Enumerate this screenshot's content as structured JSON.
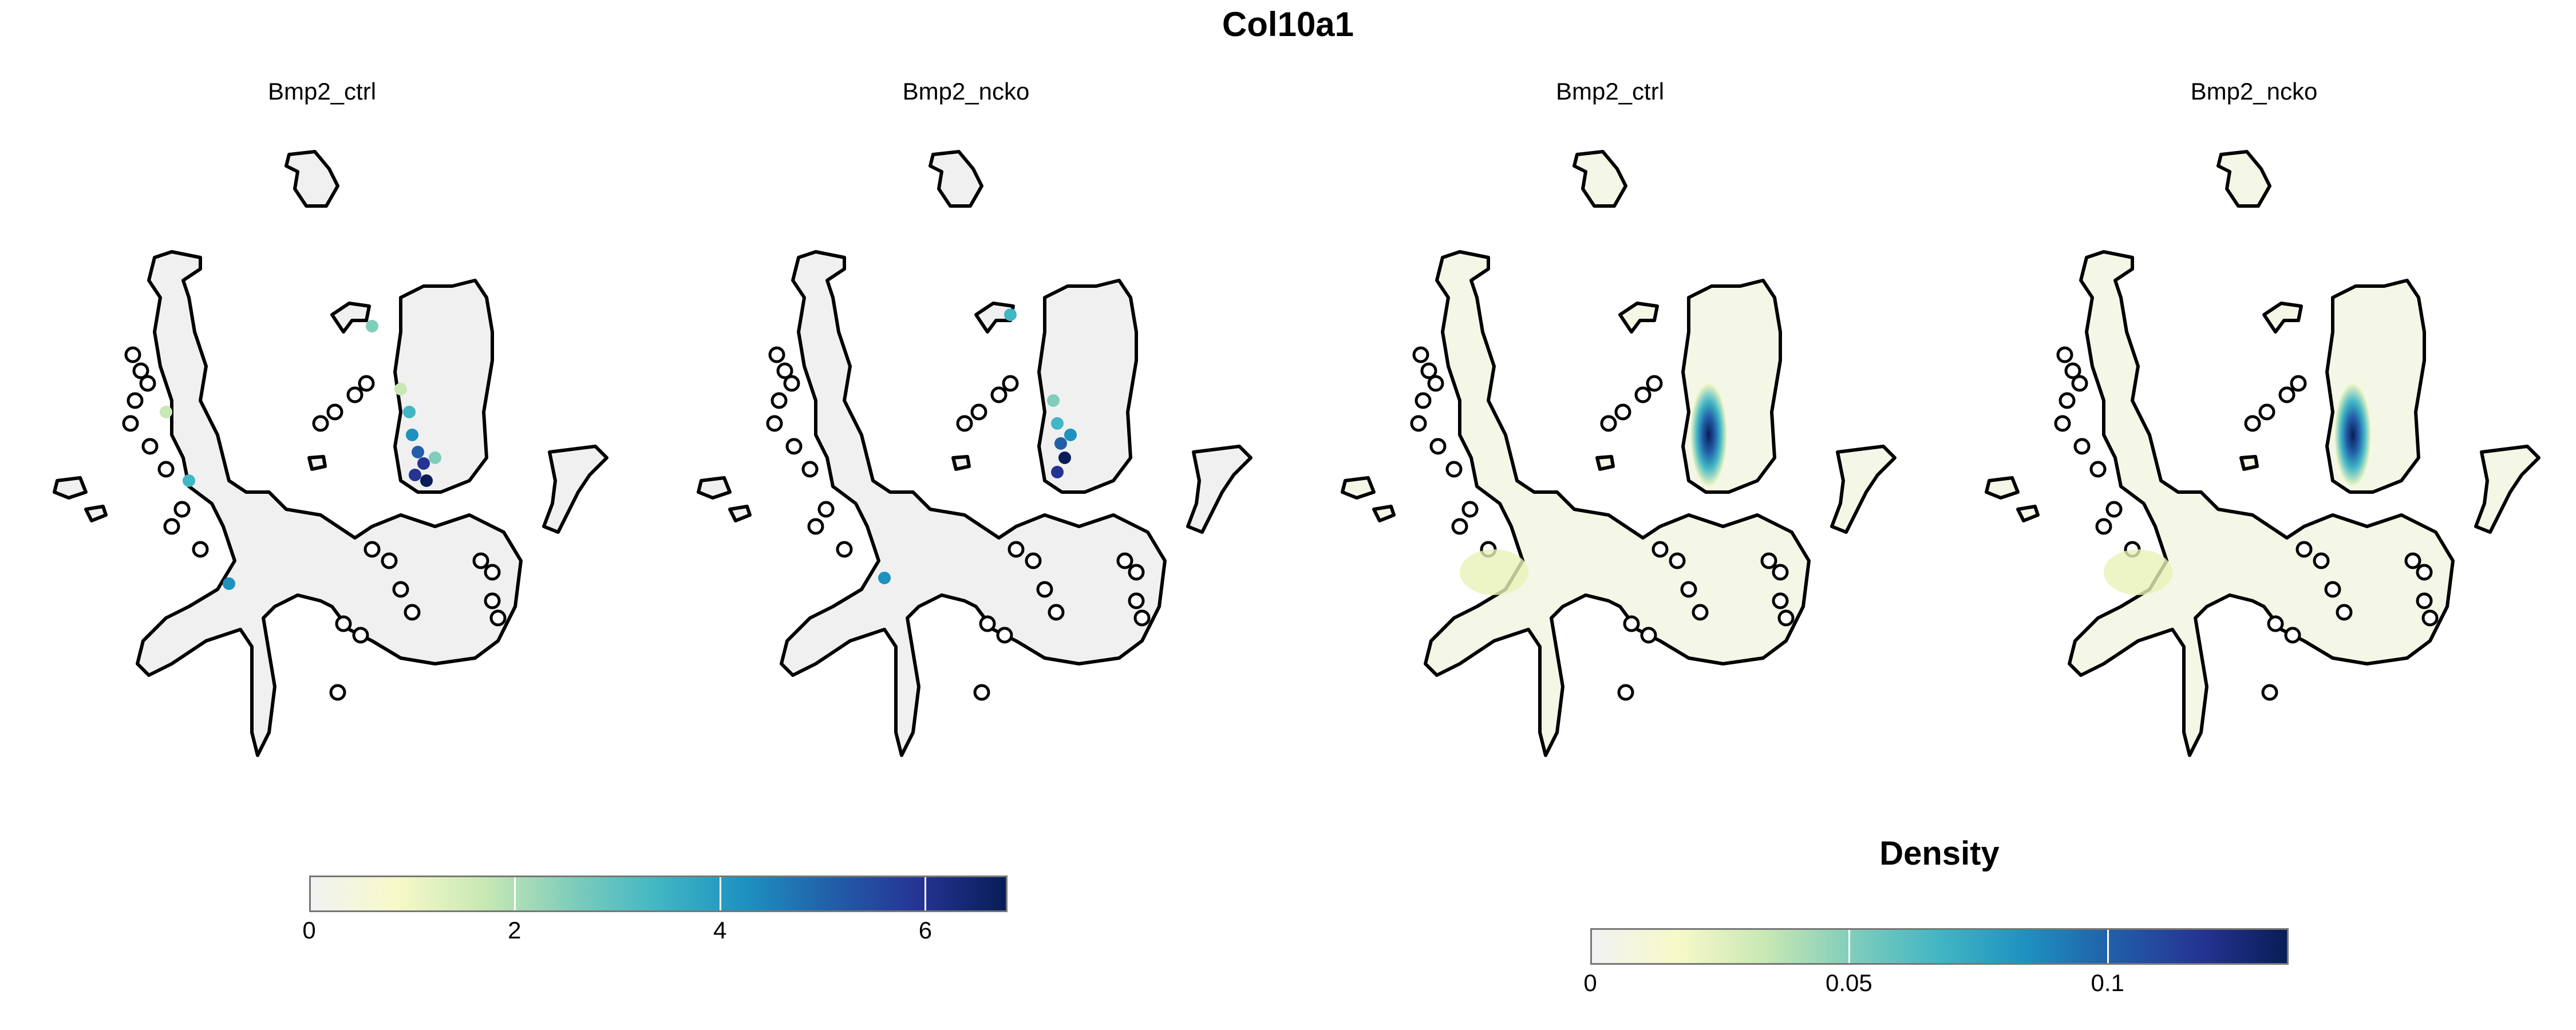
{
  "title": "Col10a1",
  "colors": {
    "outline": "#000000",
    "cell_fill": "#f0f0f0",
    "scale": [
      "#f2f2f2",
      "#f6f9c8",
      "#c8e8b4",
      "#7fcdbb",
      "#41b6c4",
      "#1d91c0",
      "#225ea8",
      "#253494",
      "#081d58"
    ]
  },
  "chart_data": [
    {
      "type": "scatter",
      "subtype": "umap-feature-expression",
      "title": "Bmp2_ctrl",
      "feature": "Col10a1",
      "color_scale": {
        "min": 0,
        "max": 6.8,
        "ticks": [
          0,
          2,
          4,
          6
        ]
      }
    },
    {
      "type": "scatter",
      "subtype": "umap-feature-expression",
      "title": "Bmp2_ncko",
      "feature": "Col10a1",
      "color_scale": {
        "min": 0,
        "max": 6.8,
        "ticks": [
          0,
          2,
          4,
          6
        ]
      }
    },
    {
      "type": "scatter",
      "subtype": "umap-kernel-density",
      "title": "Bmp2_ctrl",
      "feature": "Col10a1",
      "color_scale": {
        "title": "Density",
        "min": 0,
        "max": 0.135,
        "ticks": [
          0,
          0.05,
          0.1
        ]
      }
    },
    {
      "type": "scatter",
      "subtype": "umap-kernel-density",
      "title": "Bmp2_ncko",
      "feature": "Col10a1",
      "color_scale": {
        "title": "Density",
        "min": 0,
        "max": 0.135,
        "ticks": [
          0,
          0.05,
          0.1
        ]
      }
    }
  ],
  "legends": [
    {
      "title": "",
      "tick_labels": [
        "0",
        "2",
        "4",
        "6"
      ],
      "ticks": [
        0,
        2,
        4,
        6
      ],
      "min": 0,
      "max": 6.8
    },
    {
      "title": "Density",
      "tick_labels": [
        "0",
        "0.05",
        "0.1"
      ],
      "ticks": [
        0,
        0.05,
        0.1
      ],
      "min": 0,
      "max": 0.135
    }
  ]
}
